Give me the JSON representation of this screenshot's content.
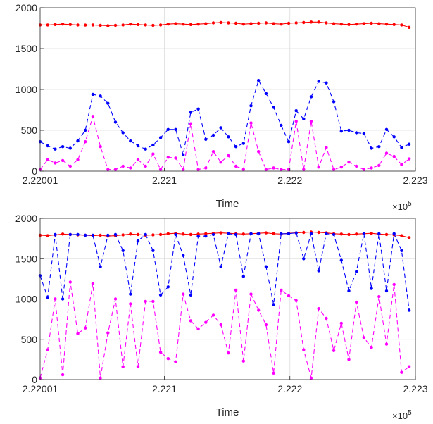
{
  "chart_data": [
    {
      "type": "line",
      "xlabel": "Time",
      "x_exponent_label": "×10",
      "x_exponent": "5",
      "xlim": [
        222001,
        222300
      ],
      "ylim": [
        0,
        2000
      ],
      "xticks": [
        222001,
        222100,
        222200,
        222300
      ],
      "xtick_labels": [
        "2.22001",
        "2.221",
        "2.222",
        "2.223"
      ],
      "yticks": [
        0,
        500,
        1000,
        1500,
        2000
      ],
      "ytick_labels": [
        "0",
        "500",
        "1000",
        "1500",
        "2000"
      ],
      "grid": true,
      "x": [
        222001,
        222007,
        222013,
        222019,
        222025,
        222031,
        222037,
        222043,
        222049,
        222055,
        222061,
        222067,
        222073,
        222079,
        222085,
        222091,
        222097,
        222103,
        222109,
        222115,
        222121,
        222127,
        222133,
        222139,
        222145,
        222151,
        222157,
        222163,
        222169,
        222175,
        222181,
        222187,
        222193,
        222199,
        222205,
        222211,
        222217,
        222223,
        222229,
        222235,
        222241,
        222247,
        222253,
        222259,
        222265,
        222271,
        222277,
        222283,
        222289,
        222295
      ],
      "series": [
        {
          "color": "#ff0000",
          "style": "solid",
          "values": [
            1790,
            1790,
            1795,
            1800,
            1795,
            1790,
            1788,
            1790,
            1785,
            1780,
            1785,
            1790,
            1800,
            1795,
            1790,
            1785,
            1790,
            1800,
            1805,
            1800,
            1795,
            1800,
            1805,
            1815,
            1820,
            1815,
            1810,
            1800,
            1805,
            1810,
            1815,
            1805,
            1800,
            1810,
            1815,
            1820,
            1825,
            1825,
            1815,
            1805,
            1800,
            1795,
            1800,
            1805,
            1810,
            1805,
            1800,
            1795,
            1790,
            1760
          ]
        },
        {
          "color": "#0000ff",
          "style": "dashed",
          "values": [
            360,
            310,
            270,
            300,
            280,
            370,
            500,
            940,
            920,
            830,
            600,
            470,
            370,
            310,
            270,
            320,
            410,
            510,
            510,
            200,
            720,
            760,
            390,
            440,
            530,
            420,
            300,
            340,
            800,
            1110,
            950,
            780,
            560,
            360,
            740,
            640,
            910,
            1100,
            1080,
            850,
            490,
            500,
            470,
            460,
            280,
            300,
            510,
            420,
            290,
            330
          ]
        },
        {
          "color": "#ff00ff",
          "style": "dashed",
          "values": [
            20,
            140,
            100,
            130,
            60,
            140,
            360,
            670,
            300,
            20,
            20,
            60,
            40,
            140,
            60,
            210,
            20,
            170,
            160,
            20,
            580,
            20,
            40,
            240,
            110,
            190,
            60,
            20,
            590,
            240,
            20,
            40,
            20,
            20,
            610,
            20,
            610,
            50,
            290,
            20,
            50,
            110,
            60,
            20,
            40,
            70,
            220,
            180,
            80,
            150
          ]
        }
      ]
    },
    {
      "type": "line",
      "xlabel": "Time",
      "x_exponent_label": "×10",
      "x_exponent": "5",
      "xlim": [
        222001,
        222300
      ],
      "ylim": [
        0,
        2000
      ],
      "xticks": [
        222001,
        222100,
        222200,
        222300
      ],
      "xtick_labels": [
        "2.22001",
        "2.221",
        "2.222",
        "2.223"
      ],
      "yticks": [
        0,
        500,
        1000,
        1500,
        2000
      ],
      "ytick_labels": [
        "0",
        "500",
        "1000",
        "1500",
        "2000"
      ],
      "grid": true,
      "x": [
        222001,
        222007,
        222013,
        222019,
        222025,
        222031,
        222037,
        222043,
        222049,
        222055,
        222061,
        222067,
        222073,
        222079,
        222085,
        222091,
        222097,
        222103,
        222109,
        222115,
        222121,
        222127,
        222133,
        222139,
        222145,
        222151,
        222157,
        222163,
        222169,
        222175,
        222181,
        222187,
        222193,
        222199,
        222205,
        222211,
        222217,
        222223,
        222229,
        222235,
        222241,
        222247,
        222253,
        222259,
        222265,
        222271,
        222277,
        222283,
        222289,
        222295
      ],
      "series": [
        {
          "color": "#ff0000",
          "style": "solid",
          "values": [
            1790,
            1785,
            1795,
            1805,
            1800,
            1795,
            1790,
            1785,
            1790,
            1780,
            1785,
            1795,
            1805,
            1800,
            1790,
            1795,
            1800,
            1810,
            1815,
            1805,
            1800,
            1805,
            1810,
            1815,
            1820,
            1815,
            1810,
            1805,
            1810,
            1815,
            1820,
            1810,
            1805,
            1815,
            1820,
            1825,
            1830,
            1825,
            1820,
            1810,
            1805,
            1800,
            1805,
            1810,
            1815,
            1805,
            1800,
            1795,
            1785,
            1760
          ]
        },
        {
          "color": "#0000ff",
          "style": "dashed",
          "values": [
            1290,
            1020,
            1800,
            1000,
            1800,
            1800,
            1790,
            1790,
            1400,
            1790,
            1800,
            1600,
            1060,
            1720,
            1800,
            1600,
            1050,
            1150,
            1800,
            1540,
            1050,
            1780,
            1780,
            1800,
            1400,
            1810,
            1800,
            1280,
            1810,
            1810,
            1400,
            930,
            1810,
            1810,
            1820,
            1500,
            1810,
            1350,
            1810,
            1800,
            1480,
            1100,
            1340,
            1810,
            1130,
            1810,
            1100,
            1810,
            1600,
            860
          ]
        },
        {
          "color": "#ff00ff",
          "style": "dashed",
          "values": [
            20,
            370,
            1000,
            60,
            1210,
            570,
            640,
            1190,
            20,
            580,
            1000,
            160,
            940,
            160,
            970,
            970,
            340,
            260,
            220,
            1060,
            730,
            630,
            710,
            800,
            680,
            330,
            1110,
            230,
            1060,
            860,
            680,
            80,
            1110,
            1040,
            980,
            370,
            20,
            880,
            760,
            360,
            700,
            250,
            960,
            520,
            400,
            1030,
            440,
            1180,
            90,
            160
          ]
        }
      ]
    }
  ]
}
